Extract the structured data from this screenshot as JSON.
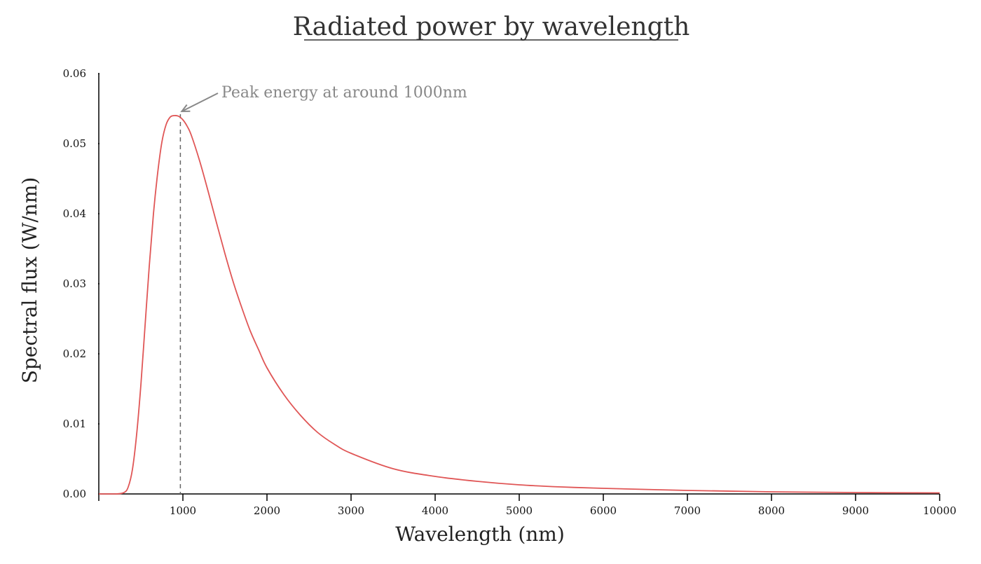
{
  "chart_data": {
    "type": "line",
    "title": "Radiated power by wavelength",
    "xlabel": "Wavelength (nm)",
    "ylabel": "Spectral flux (W/nm)",
    "xlim": [
      0,
      10000
    ],
    "ylim": [
      0,
      0.06
    ],
    "x_ticks": [
      1000,
      2000,
      3000,
      4000,
      5000,
      6000,
      7000,
      8000,
      9000,
      10000
    ],
    "y_ticks": [
      0.0,
      0.01,
      0.02,
      0.03,
      0.04,
      0.05,
      0.06
    ],
    "y_tick_labels": [
      "0.00",
      "0.01",
      "0.02",
      "0.03",
      "0.04",
      "0.05",
      "0.06"
    ],
    "grid": false,
    "series": [
      {
        "name": "Spectral flux",
        "color": "#e05656",
        "x": [
          0,
          200,
          300,
          350,
          400,
          450,
          500,
          550,
          600,
          650,
          700,
          750,
          800,
          850,
          900,
          950,
          1000,
          1050,
          1100,
          1200,
          1300,
          1400,
          1500,
          1600,
          1700,
          1800,
          1900,
          2000,
          2200,
          2400,
          2600,
          2800,
          3000,
          3500,
          4000,
          4500,
          5000,
          5500,
          6000,
          7000,
          8000,
          9000,
          10000
        ],
        "values": [
          0.0,
          0.0,
          0.0002,
          0.001,
          0.0035,
          0.0085,
          0.0155,
          0.024,
          0.0325,
          0.04,
          0.0458,
          0.0502,
          0.0527,
          0.0538,
          0.054,
          0.0539,
          0.0534,
          0.0525,
          0.0512,
          0.0475,
          0.0432,
          0.0387,
          0.0343,
          0.0302,
          0.0266,
          0.0233,
          0.0206,
          0.018,
          0.0142,
          0.0112,
          0.0088,
          0.0071,
          0.0058,
          0.0036,
          0.0025,
          0.0018,
          0.0013,
          0.001,
          0.0008,
          0.0005,
          0.0003,
          0.0002,
          0.00015
        ]
      }
    ],
    "annotation": {
      "text": "Peak energy at around 1000nm",
      "peak_x": 970,
      "peak_y": 0.054,
      "color": "#888888"
    }
  }
}
